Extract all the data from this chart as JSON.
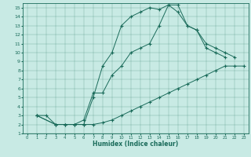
{
  "xlabel": "Humidex (Indice chaleur)",
  "bg_color": "#c8eae4",
  "line_color": "#1a6b5a",
  "xlim": [
    -0.5,
    23.5
  ],
  "ylim": [
    1,
    15.5
  ],
  "xticks": [
    0,
    1,
    2,
    3,
    4,
    5,
    6,
    7,
    8,
    9,
    10,
    11,
    12,
    13,
    14,
    15,
    16,
    17,
    18,
    19,
    20,
    21,
    22,
    23
  ],
  "yticks": [
    1,
    2,
    3,
    4,
    5,
    6,
    7,
    8,
    9,
    10,
    11,
    12,
    13,
    14,
    15
  ],
  "curve1_x": [
    1,
    2,
    3,
    4,
    5,
    6,
    7,
    8,
    9,
    10,
    11,
    12,
    13,
    14,
    15,
    16,
    17,
    18,
    19,
    20,
    21
  ],
  "curve1_y": [
    3,
    3,
    2,
    2,
    2,
    2,
    5,
    8.5,
    10,
    13,
    14,
    14.5,
    15,
    14.8,
    15.3,
    14.5,
    13,
    12.5,
    10.5,
    10,
    9.5
  ],
  "curve2_x": [
    1,
    3,
    4,
    5,
    6,
    7,
    8,
    9,
    10,
    11,
    12,
    13,
    14,
    15,
    16,
    17,
    18,
    19,
    20,
    21,
    22
  ],
  "curve2_y": [
    3,
    2,
    2,
    2,
    2.5,
    5.5,
    5.5,
    7.5,
    8.5,
    10,
    10.5,
    11,
    13,
    15.3,
    15.3,
    13,
    12.5,
    11,
    10.5,
    10,
    9.5
  ],
  "curve3_x": [
    1,
    3,
    4,
    5,
    6,
    7,
    8,
    9,
    10,
    11,
    12,
    13,
    14,
    15,
    16,
    17,
    18,
    19,
    20,
    21,
    22,
    23
  ],
  "curve3_y": [
    3,
    2,
    2,
    2,
    2,
    2,
    2.2,
    2.5,
    3,
    3.5,
    4,
    4.5,
    5,
    5.5,
    6,
    6.5,
    7,
    7.5,
    8,
    8.5,
    8.5,
    8.5
  ]
}
